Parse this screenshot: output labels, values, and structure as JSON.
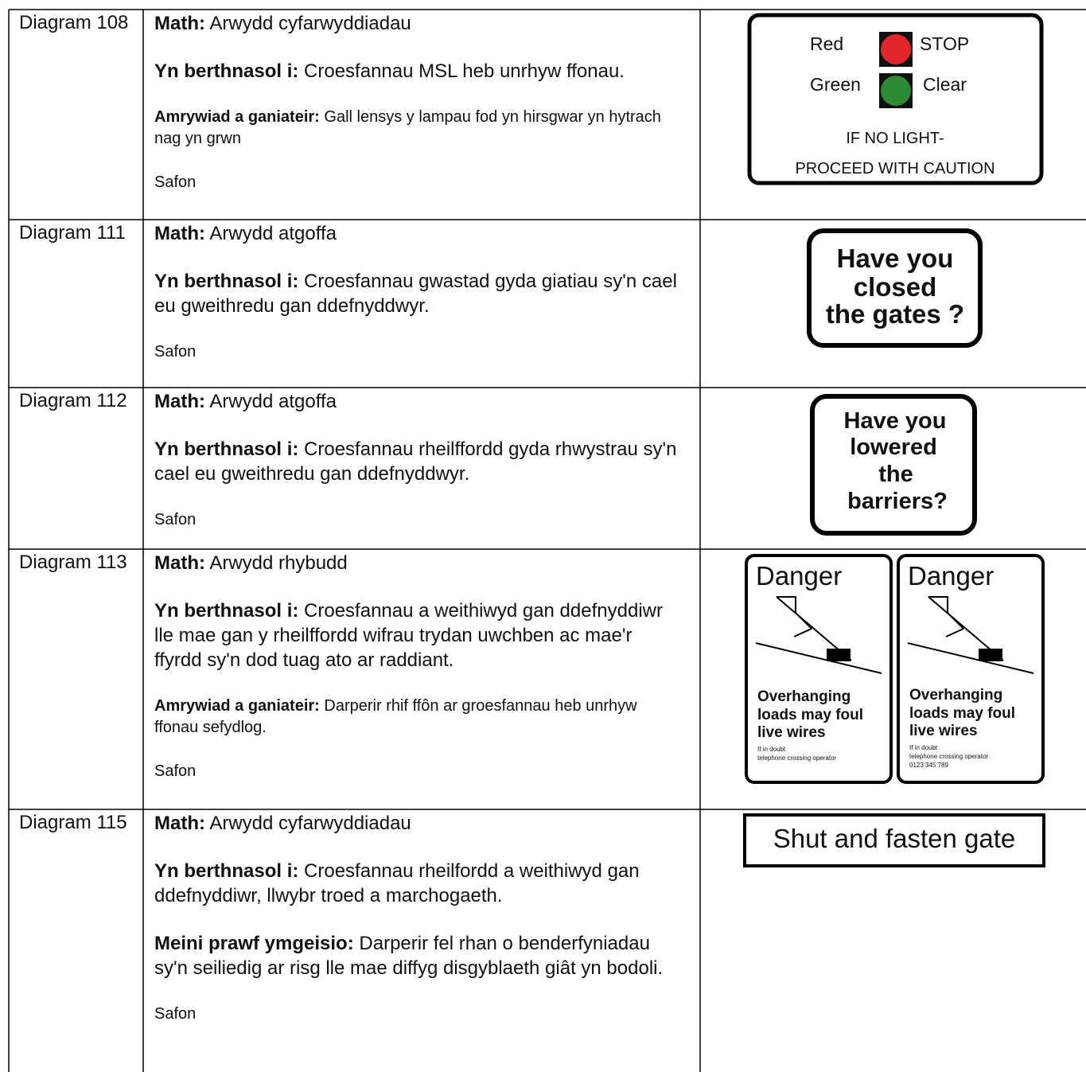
{
  "table": {
    "rows": [
      {
        "diagram": "Diagram 108",
        "paragraphs": [
          {
            "label": "Math:",
            "text": "Arwydd cyfarwyddiadau"
          },
          {
            "label": "Yn berthnasol i:",
            "text": "Croesfannau MSL heb unrhyw ffonau."
          },
          {
            "label": "Amrywiad a ganiateir:",
            "text": "Gall lensys y lampau fod yn hirsgwar yn hytrach nag yn grwn",
            "small": true
          }
        ],
        "standard": "Safon",
        "sign": {
          "red": "Red",
          "stop": "STOP",
          "green": "Green",
          "clear": "Clear",
          "line1": "IF NO LIGHT-",
          "line2": "PROCEED WITH CAUTION"
        }
      },
      {
        "diagram": "Diagram 111",
        "paragraphs": [
          {
            "label": "Math:",
            "text": "Arwydd atgoffa"
          },
          {
            "label": "Yn berthnasol i:",
            "text": "Croesfannau gwastad gyda giatiau sy'n cael eu gweithredu gan ddefnyddwyr."
          }
        ],
        "standard": "Safon",
        "sign": {
          "lines": [
            "Have you",
            "closed",
            "the gates ?"
          ]
        }
      },
      {
        "diagram": "Diagram 112",
        "paragraphs": [
          {
            "label": "Math:",
            "text": "Arwydd atgoffa"
          },
          {
            "label": "Yn berthnasol i:",
            "text": "Croesfannau rheilffordd gyda rhwystrau sy'n cael eu gweithredu gan ddefnyddwyr."
          }
        ],
        "standard": "Safon",
        "sign": {
          "lines": [
            "Have you",
            "lowered",
            "the",
            "barriers?"
          ]
        }
      },
      {
        "diagram": "Diagram 113",
        "paragraphs": [
          {
            "label": "Math:",
            "text": "Arwydd rhybudd"
          },
          {
            "label": "Yn berthnasol i:",
            "text": "Croesfannau a weithiwyd gan ddefnyddiwr lle mae gan y rheilffordd wifrau trydan uwchben ac mae'r ffyrdd sy'n dod tuag ato ar raddiant."
          },
          {
            "label": "Amrywiad a ganiateir:",
            "text": "Darperir rhif ffôn ar groesfannau heb unrhyw ffonau sefydlog.",
            "small": true
          }
        ],
        "standard": "Safon",
        "sign": {
          "panels": [
            {
              "title": "Danger",
              "lines": [
                "Overhanging",
                "loads may foul",
                "live wires"
              ],
              "small": [
                "If in doubt",
                "telephone crossing operator"
              ]
            },
            {
              "title": "Danger",
              "lines": [
                "Overhanging",
                "loads may foul",
                "live wires"
              ],
              "small": [
                "If in doubt",
                "telephone crossing operator",
                "0123 345 789"
              ]
            }
          ]
        }
      },
      {
        "diagram": "Diagram 115",
        "paragraphs": [
          {
            "label": "Math:",
            "text": "Arwydd cyfarwyddiadau"
          },
          {
            "label": "Yn berthnasol i:",
            "text": "Croesfannau rheilfordd a weithiwyd gan ddefnyddiwr, llwybr troed a marchogaeth."
          },
          {
            "label": "Meini prawf ymgeisio:",
            "text": "Darperir fel rhan o benderfyniadau sy'n seiliedig ar risg lle mae diffyg disgyblaeth giât yn bodoli."
          }
        ],
        "standard": "Safon",
        "sign": {
          "text": "Shut and fasten gate"
        }
      }
    ]
  }
}
